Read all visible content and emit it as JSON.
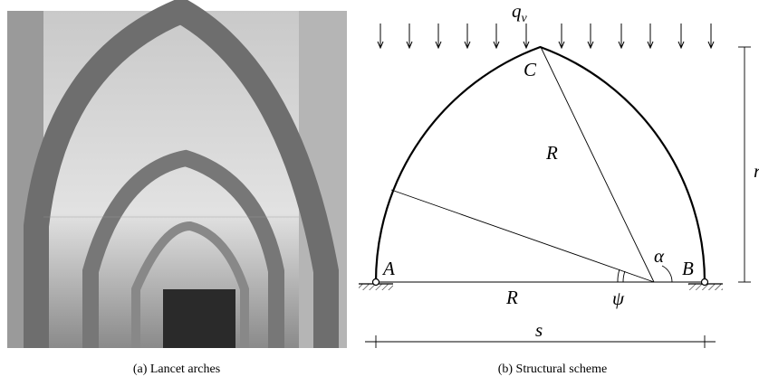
{
  "figure": {
    "subfigures": [
      {
        "caption": "(a) Lancet arches"
      },
      {
        "caption": "(b) Structural scheme"
      }
    ],
    "diagram": {
      "load": {
        "main": "q",
        "sub": "v"
      },
      "points": [
        "A",
        "B",
        "C"
      ],
      "radius_labels": [
        "R",
        "R"
      ],
      "angles": [
        "α",
        "ψ"
      ],
      "span": "s",
      "rise": "r"
    }
  }
}
